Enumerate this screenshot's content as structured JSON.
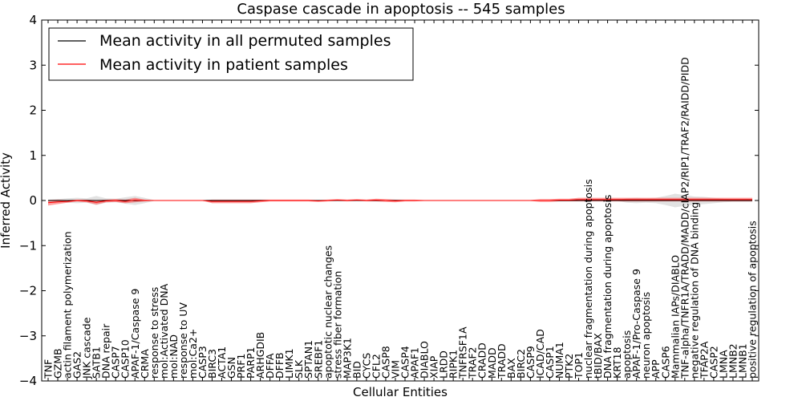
{
  "chart_data": {
    "type": "line",
    "title": "Caspase cascade in apoptosis -- 545 samples",
    "xlabel": "Cellular Entities",
    "ylabel": "Inferred Activity",
    "ylim": [
      -4,
      4
    ],
    "yticks": [
      "4",
      "3",
      "2",
      "1",
      "0",
      "−1",
      "−2",
      "−3",
      "−4"
    ],
    "ytick_values": [
      4,
      3,
      2,
      1,
      0,
      -1,
      -2,
      -3,
      -4
    ],
    "grid": false,
    "legend_position": "top-left",
    "categories": [
      "TNF",
      "GZMB",
      "actin filament polymerization",
      "GAS2",
      "JNK cascade",
      "SATB1",
      "DNA repair",
      "CASP7",
      "CASP10",
      "APAF-1/Caspase 9",
      "CRMA",
      "response to stress",
      "mol:Activated DNA",
      "mol:NAD",
      "response to UV",
      "mol:Ca2+",
      "CASP3",
      "BIRC3",
      "ACTA1",
      "GSN",
      "PRF1",
      "PARP1",
      "ARHGDIB",
      "DFFA",
      "DFFB",
      "LIMK1",
      "SLK",
      "SPTAN1",
      "SREBF1",
      "apoptotic nuclear changes",
      "stress fiber formation",
      "MAP3K1",
      "BID",
      "CYCS",
      "CFL2",
      "CASP8",
      "VIM",
      "CASP4",
      "APAF1",
      "DIABLO",
      "XIAP",
      "LRDD",
      "RIPK1",
      "TNFRSF1A",
      "TRAF2",
      "CRADD",
      "MADD",
      "TRADD",
      "BAX",
      "BIRC2",
      "CASP9",
      "ICAD/CAD",
      "CASP1",
      "NUMA1",
      "PTK2",
      "TOP1",
      "nuclear fragmentation during apoptosis",
      "tBID/BAX",
      "DNA fragmentation during apoptosis",
      "KRT18",
      "apoptosis",
      "APAF-1/Pro-Caspase 9",
      "neuron apoptosis",
      "APP",
      "CASP6",
      "Mammalian IAPs/DIABLO",
      "TNF-alpha/TNFR1A/TRADD/MADD/cIAP2/RIP1/TRAF2/RAIDD/PIDD",
      "negative regulation of DNA binding",
      "TFAP2A",
      "CASP2",
      "LMNA",
      "LMNB2",
      "LMNB1",
      "positive regulation of apoptosis"
    ],
    "series": [
      {
        "name": "Mean activity in all permuted samples",
        "color": "#000000",
        "values": [
          0,
          0,
          0,
          0,
          0,
          0,
          0,
          0,
          0,
          0,
          0,
          0,
          0,
          0,
          0,
          0,
          0,
          0,
          0,
          0,
          0,
          0,
          0,
          0,
          0,
          0,
          0,
          0,
          0,
          0,
          0,
          0,
          0,
          0,
          0,
          0,
          0,
          0,
          0,
          0,
          0,
          0,
          0,
          0,
          0,
          0,
          0,
          0,
          0,
          0,
          0,
          0,
          0,
          0,
          0,
          0,
          0,
          0,
          0,
          0,
          0,
          0,
          0,
          0,
          0,
          0,
          0,
          0,
          0,
          0,
          0,
          0,
          0,
          0
        ],
        "band": [
          0.02,
          0.03,
          0.05,
          0.06,
          0.05,
          0.1,
          0.05,
          0.04,
          0.07,
          0.1,
          0.06,
          0.01,
          0.01,
          0.01,
          0.01,
          0.01,
          0.01,
          0.01,
          0.01,
          0.01,
          0.01,
          0.01,
          0.01,
          0.01,
          0.01,
          0.01,
          0.01,
          0.01,
          0.01,
          0.01,
          0.01,
          0.01,
          0.01,
          0.01,
          0.01,
          0.01,
          0.01,
          0.01,
          0.01,
          0.01,
          0.01,
          0.01,
          0.01,
          0.01,
          0.01,
          0.01,
          0.01,
          0.01,
          0.01,
          0.01,
          0.01,
          0.01,
          0.01,
          0.01,
          0.01,
          0.01,
          0.01,
          0.01,
          0.01,
          0.01,
          0.05,
          0.06,
          0.05,
          0.06,
          0.1,
          0.15,
          0.12,
          0.09,
          0.08,
          0.06,
          0.04,
          0.03,
          0.03,
          0.03
        ]
      },
      {
        "name": "Mean activity in patient samples",
        "color": "#ff0000",
        "band_color": "#ff5050",
        "values": [
          -0.05,
          -0.03,
          -0.02,
          0,
          -0.01,
          -0.04,
          -0.01,
          0,
          -0.02,
          0.01,
          0,
          0,
          0,
          0,
          0,
          0,
          0,
          -0.02,
          -0.02,
          -0.02,
          -0.02,
          -0.02,
          -0.01,
          0,
          0,
          0,
          0,
          0,
          -0.01,
          0,
          0.01,
          0,
          0.01,
          0,
          0.01,
          0,
          -0.01,
          0,
          0,
          0,
          0,
          0,
          0,
          0,
          0,
          0,
          0,
          0,
          0,
          0,
          0,
          0,
          0,
          0.01,
          0.01,
          0.02,
          0.02,
          0.02,
          0.02,
          0.02,
          0.02,
          0.02,
          0.02,
          0.02,
          0.02,
          0.02,
          0.02,
          0.02,
          0.02,
          0.02,
          0.02,
          0.02,
          0.02,
          0.02
        ],
        "band": [
          0.06,
          0.05,
          0.03,
          0.02,
          0.03,
          0.05,
          0.03,
          0.03,
          0.04,
          0.05,
          0.02,
          0.005,
          0.005,
          0.005,
          0.005,
          0.005,
          0.005,
          0.04,
          0.04,
          0.04,
          0.04,
          0.04,
          0.03,
          0.02,
          0.02,
          0.02,
          0.02,
          0.02,
          0.02,
          0.02,
          0.02,
          0.02,
          0.02,
          0.02,
          0.03,
          0.03,
          0.03,
          0.02,
          0.02,
          0.01,
          0.01,
          0.01,
          0.01,
          0.01,
          0.01,
          0.01,
          0.01,
          0.01,
          0.01,
          0.01,
          0.01,
          0.03,
          0.03,
          0.03,
          0.03,
          0.04,
          0.04,
          0.04,
          0.04,
          0.04,
          0.04,
          0.04,
          0.04,
          0.04,
          0.04,
          0.04,
          0.04,
          0.04,
          0.04,
          0.04,
          0.04,
          0.04,
          0.04,
          0.04
        ]
      }
    ]
  }
}
